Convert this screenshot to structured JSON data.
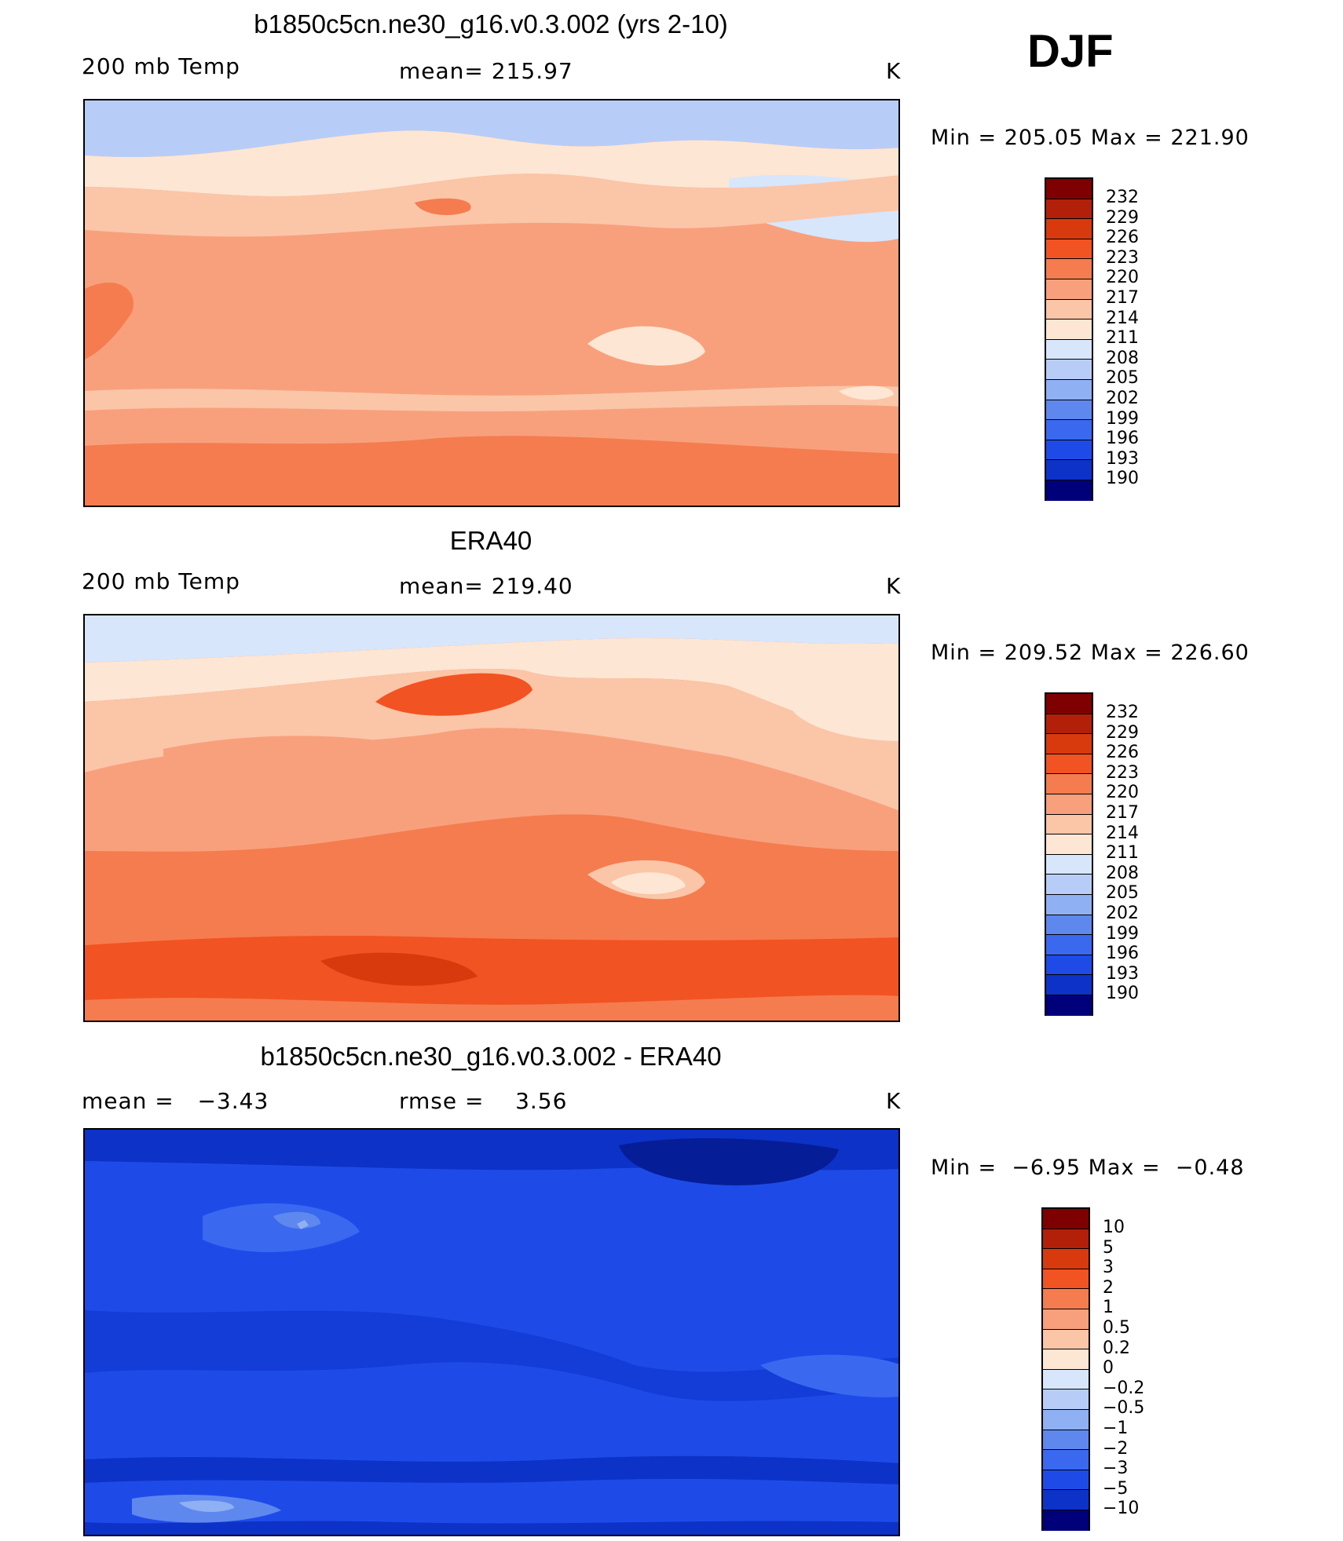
{
  "season": "DJF",
  "units": "K",
  "panels": [
    {
      "title": "b1850c5cn.ne30_g16.v0.3.002 (yrs 2-10)",
      "left_label": "200 mb Temp",
      "center_label": "mean= 215.97",
      "units": "K",
      "minmax": "Min = 205.05 Max = 221.90",
      "colorbar_labels": [
        "232",
        "229",
        "226",
        "223",
        "220",
        "217",
        "214",
        "211",
        "208",
        "205",
        "202",
        "199",
        "196",
        "193",
        "190"
      ]
    },
    {
      "title": "ERA40",
      "left_label": "200 mb Temp",
      "center_label": "mean= 219.40",
      "units": "K",
      "minmax": "Min = 209.52 Max = 226.60",
      "colorbar_labels": [
        "232",
        "229",
        "226",
        "223",
        "220",
        "217",
        "214",
        "211",
        "208",
        "205",
        "202",
        "199",
        "196",
        "193",
        "190"
      ]
    },
    {
      "title": "b1850c5cn.ne30_g16.v0.3.002 - ERA40",
      "left_label": "mean =   −3.43",
      "center_label": "rmse =    3.56",
      "units": "K",
      "minmax": "Min =  −6.95 Max =  −0.48",
      "colorbar_labels": [
        "10",
        "5",
        "3",
        "2",
        "1",
        "0.5",
        "0.2",
        "0",
        "−0.2",
        "−0.5",
        "−1",
        "−2",
        "−3",
        "−5",
        "−10"
      ]
    }
  ],
  "colors": {
    "scale": [
      "#7f0000",
      "#b2200a",
      "#d83a0e",
      "#f25322",
      "#f57c4f",
      "#f8a07c",
      "#fbc5a8",
      "#fde6d4",
      "#d7e6fb",
      "#b7cdf8",
      "#8fb0f3",
      "#5e88ee",
      "#3a69f0",
      "#1e4be8",
      "#0d32c8",
      "#061d98",
      "#00007a"
    ]
  }
}
